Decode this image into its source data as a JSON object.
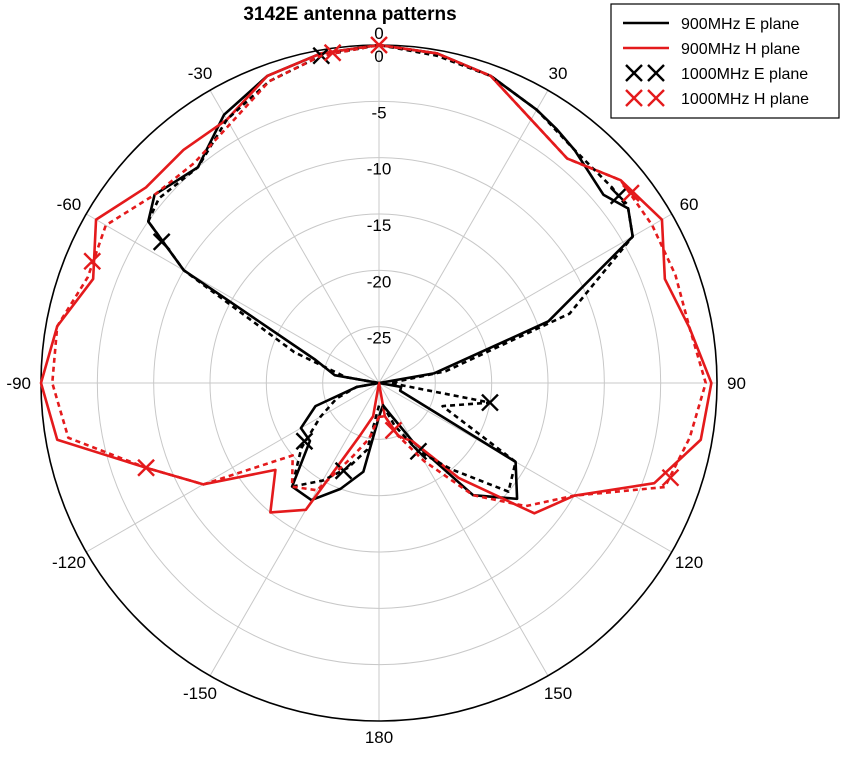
{
  "chart_data": {
    "type": "polar-line",
    "title": "3142E antenna patterns",
    "r_ticks": [
      -25,
      -20,
      -15,
      -10,
      -5,
      0
    ],
    "r_range": [
      -30,
      0
    ],
    "angle_ticks": [
      0,
      30,
      60,
      90,
      120,
      150,
      180,
      -150,
      -120,
      -90,
      -60,
      -30
    ],
    "angle_tick_labels": [
      "0",
      "30",
      "60",
      "90",
      "120",
      "150",
      "180",
      "-150",
      "-120",
      "-90",
      "-60",
      "-30"
    ],
    "grid": true,
    "legend_position": "top-right",
    "series": [
      {
        "name": "900MHz E plane",
        "color": "#000000",
        "dash": "solid",
        "markers": [],
        "points": [
          [
            -180,
            -27
          ],
          [
            -170,
            -22
          ],
          [
            -160,
            -20
          ],
          [
            -150,
            -18
          ],
          [
            -140,
            -18
          ],
          [
            -130,
            -22
          ],
          [
            -120,
            -22
          ],
          [
            -110,
            -24
          ],
          [
            -100,
            -28
          ],
          [
            -95,
            -30
          ],
          [
            -90,
            -30
          ],
          [
            -80,
            -26
          ],
          [
            -70,
            -24
          ],
          [
            -60,
            -10
          ],
          [
            -55,
            -5
          ],
          [
            -50,
            -4
          ],
          [
            -40,
            -5
          ],
          [
            -30,
            -2.5
          ],
          [
            -20,
            -1
          ],
          [
            -10,
            -0.3
          ],
          [
            0,
            0
          ],
          [
            10,
            -0.3
          ],
          [
            20,
            -1
          ],
          [
            30,
            -2
          ],
          [
            35,
            -2.5
          ],
          [
            40,
            -3
          ],
          [
            50,
            -4
          ],
          [
            55,
            -3
          ],
          [
            60,
            -4
          ],
          [
            70,
            -14
          ],
          [
            80,
            -25
          ],
          [
            90,
            -30
          ],
          [
            100,
            -28
          ],
          [
            110,
            -28
          ],
          [
            120,
            -16
          ],
          [
            130,
            -14
          ],
          [
            140,
            -17
          ],
          [
            150,
            -24
          ],
          [
            160,
            -27
          ],
          [
            170,
            -28
          ]
        ]
      },
      {
        "name": "900MHz H plane",
        "color": "#e41a1c",
        "dash": "solid",
        "markers": [],
        "points": [
          [
            -180,
            -30
          ],
          [
            -170,
            -27
          ],
          [
            -160,
            -25
          ],
          [
            -150,
            -17
          ],
          [
            -140,
            -15
          ],
          [
            -130,
            -18
          ],
          [
            -120,
            -12
          ],
          [
            -110,
            -8
          ],
          [
            -100,
            -1
          ],
          [
            -90,
            0
          ],
          [
            -80,
            -1
          ],
          [
            -70,
            -3
          ],
          [
            -60,
            -1
          ],
          [
            -50,
            -3
          ],
          [
            -40,
            -3
          ],
          [
            -30,
            -3
          ],
          [
            -20,
            -1
          ],
          [
            -10,
            -0.3
          ],
          [
            0,
            0
          ],
          [
            10,
            -0.3
          ],
          [
            20,
            -1
          ],
          [
            30,
            -3
          ],
          [
            40,
            -4
          ],
          [
            50,
            -2
          ],
          [
            60,
            -1
          ],
          [
            70,
            -3
          ],
          [
            80,
            -2
          ],
          [
            90,
            -0.5
          ],
          [
            100,
            -1
          ],
          [
            110,
            -4
          ],
          [
            120,
            -10
          ],
          [
            130,
            -12
          ],
          [
            140,
            -19
          ],
          [
            150,
            -24
          ],
          [
            160,
            -25
          ],
          [
            170,
            -27
          ]
        ]
      },
      {
        "name": "1000MHz E plane",
        "color": "#000000",
        "dash": "dashed",
        "markers": [
          -158,
          -128,
          -57,
          -10,
          52,
          100,
          150
        ],
        "points": [
          [
            -180,
            -28
          ],
          [
            -170,
            -24
          ],
          [
            -160,
            -22
          ],
          [
            -150,
            -20
          ],
          [
            -140,
            -18
          ],
          [
            -130,
            -21
          ],
          [
            -120,
            -24
          ],
          [
            -110,
            -26
          ],
          [
            -100,
            -28
          ],
          [
            -90,
            -30
          ],
          [
            -80,
            -27
          ],
          [
            -70,
            -22
          ],
          [
            -60,
            -10
          ],
          [
            -55,
            -5
          ],
          [
            -50,
            -4.5
          ],
          [
            -40,
            -5
          ],
          [
            -30,
            -3
          ],
          [
            -20,
            -1.5
          ],
          [
            -10,
            -0.5
          ],
          [
            0,
            0
          ],
          [
            10,
            -0.5
          ],
          [
            20,
            -1
          ],
          [
            30,
            -2
          ],
          [
            40,
            -3
          ],
          [
            50,
            -3
          ],
          [
            55,
            -3
          ],
          [
            60,
            -4
          ],
          [
            70,
            -12
          ],
          [
            80,
            -24
          ],
          [
            90,
            -29
          ],
          [
            100,
            -20
          ],
          [
            110,
            -24
          ],
          [
            120,
            -16
          ],
          [
            130,
            -15
          ],
          [
            140,
            -20
          ],
          [
            150,
            -23
          ],
          [
            160,
            -26
          ],
          [
            170,
            -28
          ]
        ]
      },
      {
        "name": "1000MHz H plane",
        "color": "#e41a1c",
        "dash": "dashed",
        "markers": [
          -110,
          -67,
          -8,
          0,
          53,
          108,
          163
        ],
        "points": [
          [
            -180,
            -27
          ],
          [
            -170,
            -25
          ],
          [
            -160,
            -23
          ],
          [
            -150,
            -19
          ],
          [
            -140,
            -18
          ],
          [
            -130,
            -20
          ],
          [
            -120,
            -12
          ],
          [
            -110,
            -8
          ],
          [
            -100,
            -2
          ],
          [
            -90,
            -1
          ],
          [
            -80,
            -1
          ],
          [
            -70,
            -2.5
          ],
          [
            -60,
            -2
          ],
          [
            -50,
            -4
          ],
          [
            -40,
            -4.5
          ],
          [
            -30,
            -3.5
          ],
          [
            -20,
            -1.5
          ],
          [
            -10,
            -0.5
          ],
          [
            0,
            0
          ],
          [
            10,
            -0.3
          ],
          [
            20,
            -1
          ],
          [
            30,
            -3
          ],
          [
            40,
            -4
          ],
          [
            50,
            -2
          ],
          [
            60,
            -2
          ],
          [
            70,
            -2
          ],
          [
            80,
            -2
          ],
          [
            90,
            -1
          ],
          [
            100,
            -2
          ],
          [
            110,
            -3
          ],
          [
            120,
            -10
          ],
          [
            130,
            -13
          ],
          [
            140,
            -17
          ],
          [
            150,
            -22
          ],
          [
            160,
            -25
          ],
          [
            170,
            -27
          ]
        ]
      }
    ]
  }
}
